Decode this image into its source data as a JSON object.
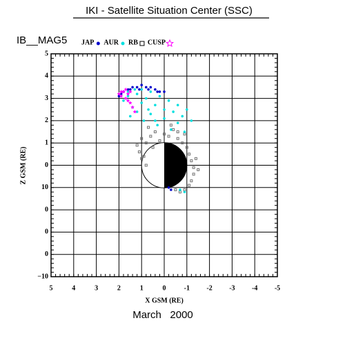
{
  "chart_data": {
    "type": "scatter",
    "title": "IKI - Satellite Situation Center (SSC)",
    "subtitle": "IB__MAG5",
    "xlabel": "X GSM (RE)",
    "ylabel": "Z GSM (RE)",
    "footer": "March   2000",
    "xlim": [
      5,
      -5
    ],
    "ylim": [
      -5,
      5
    ],
    "xticks": [
      5,
      4,
      3,
      2,
      1,
      0,
      -1,
      -2,
      -3,
      -4,
      -5
    ],
    "yticks": [
      5,
      4,
      3,
      2,
      1,
      0,
      {
        "value": -1,
        "label": "10"
      },
      {
        "value": -2,
        "label": "0"
      },
      {
        "value": -3,
        "label": "0"
      },
      {
        "value": -4,
        "label": "0"
      },
      {
        "value": -5,
        "label": "−10"
      }
    ],
    "grid": true,
    "series": [
      {
        "name": "JAP",
        "color": "#0000cc",
        "marker": "dot",
        "x": [
          2.0,
          1.8,
          1.6,
          1.4,
          1.2,
          1.0,
          0.8,
          0.6,
          0.4,
          0.2,
          0.0,
          1.9,
          1.5,
          1.1,
          0.7,
          0.3,
          -0.2,
          -0.3
        ],
        "y": [
          3.1,
          3.3,
          3.4,
          3.5,
          3.5,
          3.6,
          3.5,
          3.5,
          3.4,
          3.3,
          3.3,
          3.2,
          3.4,
          3.4,
          3.4,
          3.3,
          -1.0,
          -1.1
        ]
      },
      {
        "name": "AUR",
        "color": "#00e0e0",
        "marker": "dot",
        "x": [
          1.8,
          1.6,
          1.4,
          1.2,
          1.0,
          0.8,
          0.6,
          0.4,
          0.2,
          0.0,
          -0.2,
          -0.4,
          -0.6,
          -0.8,
          -1.0,
          -1.2,
          1.5,
          1.2,
          0.9,
          0.6,
          0.3,
          0.0,
          -0.3,
          -0.6,
          -0.9,
          1.6,
          1.3,
          1.0,
          0.7,
          0.4,
          -0.7,
          -0.9
        ],
        "y": [
          2.9,
          3.1,
          2.6,
          3.2,
          2.8,
          3.0,
          3.3,
          2.7,
          3.1,
          2.5,
          2.9,
          2.4,
          2.7,
          2.2,
          2.5,
          2.0,
          2.2,
          2.4,
          2.0,
          2.3,
          1.8,
          2.1,
          1.6,
          1.9,
          1.5,
          3.3,
          3.4,
          3.4,
          2.5,
          2.0,
          -1.1,
          -1.2
        ]
      },
      {
        "name": "RB",
        "color": "#707070",
        "marker": "square",
        "x": [
          1.0,
          0.8,
          0.6,
          0.4,
          0.2,
          0.0,
          -0.2,
          -0.4,
          -0.6,
          -0.8,
          -1.0,
          -1.1,
          -1.2,
          -1.3,
          -1.3,
          -1.2,
          -1.1,
          -0.9,
          -0.7,
          -0.5,
          1.2,
          1.1,
          0.9,
          0.7,
          0.5,
          -0.3,
          -0.6,
          -0.9,
          -1.4,
          -1.5,
          1.0,
          0.8
        ],
        "y": [
          1.2,
          1.0,
          1.3,
          1.5,
          1.1,
          1.4,
          1.3,
          1.6,
          1.2,
          1.0,
          0.8,
          0.5,
          0.2,
          -0.1,
          -0.4,
          -0.7,
          -0.9,
          -1.1,
          -1.2,
          -1.1,
          0.9,
          0.6,
          0.4,
          1.7,
          0.8,
          1.8,
          1.5,
          1.4,
          0.3,
          -0.2,
          0.3,
          0.0
        ]
      },
      {
        "name": "CUSP",
        "color": "#ff00ff",
        "marker": "star",
        "x": [
          2.0,
          1.9,
          1.8,
          1.7,
          1.6,
          1.5,
          1.4,
          1.3,
          1.9,
          1.7,
          1.5,
          1.6
        ],
        "y": [
          3.2,
          3.1,
          3.3,
          3.0,
          2.9,
          2.8,
          2.6,
          2.4,
          3.3,
          3.4,
          3.3,
          3.2
        ]
      }
    ]
  }
}
